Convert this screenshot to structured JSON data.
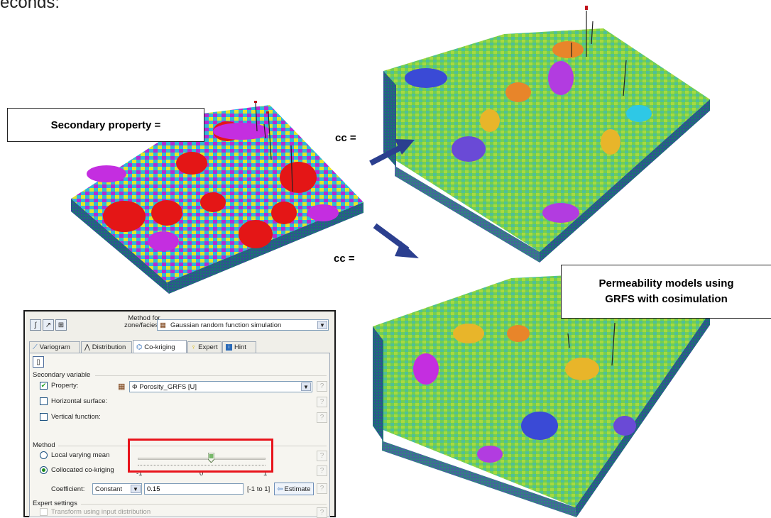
{
  "header_fragment": "econds:",
  "callouts": {
    "secondary_property": "Secondary property =",
    "permeability_line1": "Permeability models using",
    "permeability_line2": "GRFS with cosimulation"
  },
  "cc_labels": [
    "cc =",
    "cc ="
  ],
  "dialog": {
    "method_label_line1": "Method for",
    "method_label_line2": "zone/facies:",
    "method_value": "Gaussian random function simulation",
    "tabs": [
      {
        "label": "Variogram",
        "icon": "variogram-icon"
      },
      {
        "label": "Distribution",
        "icon": "distribution-icon"
      },
      {
        "label": "Co-kriging",
        "icon": "co-kriging-icon"
      },
      {
        "label": "Expert",
        "icon": "lightbulb-icon"
      },
      {
        "label": "Hint",
        "icon": "hint-icon"
      }
    ],
    "active_tab": "Co-kriging",
    "secondary_variable": {
      "title": "Secondary variable",
      "property_label": "Property:",
      "property_value": "Φ  Porosity_GRFS [U]",
      "property_checked": true,
      "horizontal_surface_label": "Horizontal surface:",
      "vertical_function_label": "Vertical function:"
    },
    "method": {
      "title": "Method",
      "local_varying_mean": "Local varying mean",
      "collocated_cokriging": "Collocated co-kriging",
      "selected": "Collocated co-kriging",
      "slider_min_label": "-1",
      "slider_mid_label": "0",
      "slider_max_label": "1",
      "slider_value": 0.15,
      "coefficient_label": "Coefficient:",
      "coefficient_mode": "Constant",
      "coefficient_value": "0.15",
      "range_hint": "[-1 to 1]",
      "estimate_label": "Estimate"
    },
    "expert_settings": {
      "title": "Expert settings",
      "transform_label": "Transform using input distribution"
    },
    "help_glyph": "?"
  },
  "colors": {
    "highlight_box": "#e8141c",
    "arrow": "#2b3f8f",
    "dialog_bg": "#f0efe9"
  }
}
